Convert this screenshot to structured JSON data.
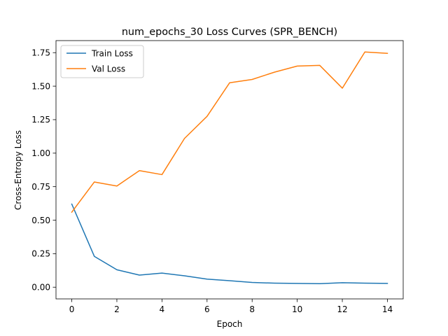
{
  "chart_data": {
    "type": "line",
    "title": "num_epochs_30 Loss Curves (SPR_BENCH)",
    "xlabel": "Epoch",
    "ylabel": "Cross-Entropy Loss",
    "xlim": [
      -0.7,
      14.7
    ],
    "ylim": [
      -0.0875,
      1.84
    ],
    "xticks": [
      0,
      2,
      4,
      6,
      8,
      10,
      12,
      14
    ],
    "yticks": [
      0.0,
      0.25,
      0.5,
      0.75,
      1.0,
      1.25,
      1.5,
      1.75
    ],
    "ytick_labels": [
      "0.00",
      "0.25",
      "0.50",
      "0.75",
      "1.00",
      "1.25",
      "1.50",
      "1.75"
    ],
    "grid": false,
    "legend_position": "top-left",
    "x": [
      0,
      1,
      2,
      3,
      4,
      5,
      6,
      7,
      8,
      9,
      10,
      11,
      12,
      13,
      14
    ],
    "series": [
      {
        "name": "Train Loss",
        "color": "#1f77b4",
        "values": [
          0.62,
          0.23,
          0.13,
          0.09,
          0.105,
          0.085,
          0.06,
          0.048,
          0.035,
          0.03,
          0.028,
          0.026,
          0.033,
          0.03,
          0.028
        ]
      },
      {
        "name": "Val Loss",
        "color": "#ff7f0e",
        "values": [
          0.56,
          0.785,
          0.755,
          0.87,
          0.84,
          1.11,
          1.275,
          1.525,
          1.55,
          1.605,
          1.65,
          1.655,
          1.485,
          1.755,
          1.745
        ]
      }
    ]
  }
}
